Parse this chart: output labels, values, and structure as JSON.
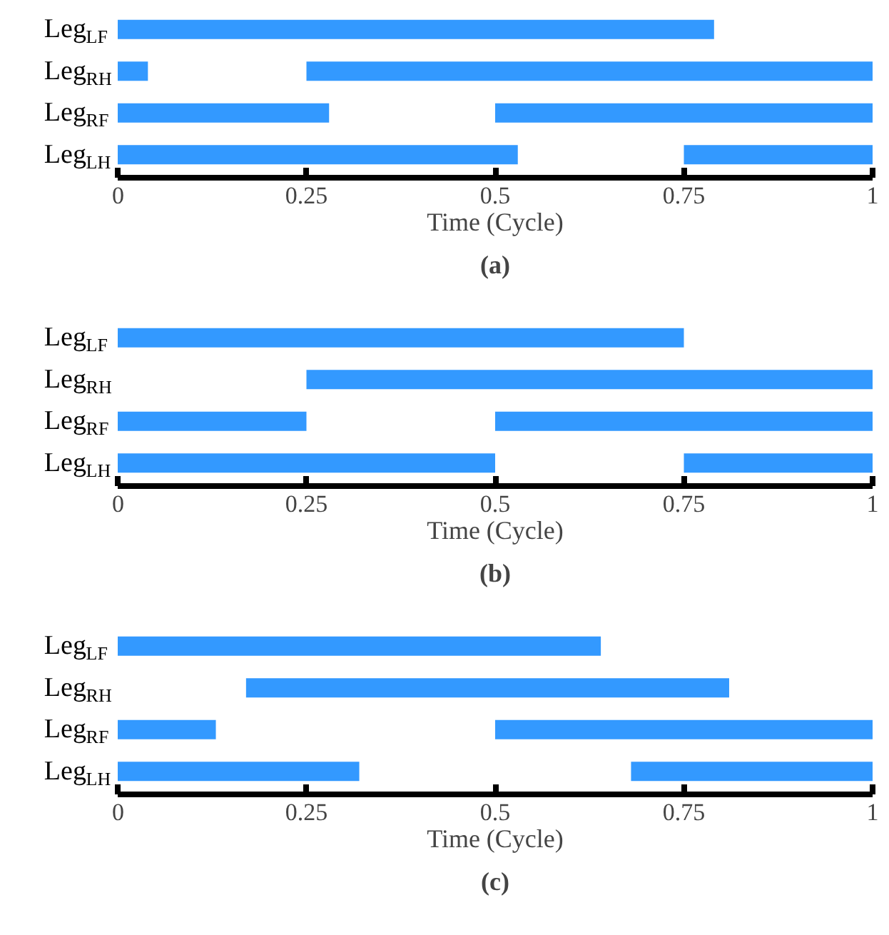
{
  "chart_data": [
    {
      "type": "bar",
      "orientation": "horizontal",
      "title": "(a)",
      "xlabel": "Time (Cycle)",
      "categories": [
        "Leg$_{LF}$",
        "Leg$_{RH}$",
        "Leg$_{RF}$",
        "Leg$_{LH}$"
      ],
      "series": [
        {
          "color": "#3399ff",
          "base": [
            0,
            0,
            0,
            0
          ],
          "values": [
            0.79,
            0.04,
            0.28,
            0.53
          ]
        },
        {
          "color": "#3399ff",
          "base": [
            null,
            0.25,
            0.5,
            0.75
          ],
          "values": [
            null,
            0.75,
            0.5,
            0.25
          ]
        }
      ],
      "xlim": [
        0,
        1
      ],
      "xticks": [
        0,
        0.25,
        0.5,
        0.75,
        1
      ],
      "grid": false
    },
    {
      "type": "bar",
      "orientation": "horizontal",
      "title": "(b)",
      "xlabel": "Time (Cycle)",
      "categories": [
        "Leg$_{LF}$",
        "Leg$_{RH}$",
        "Leg$_{RF}$",
        "Leg$_{LH}$"
      ],
      "series": [
        {
          "color": "#3399ff",
          "base": [
            0,
            null,
            0,
            0
          ],
          "values": [
            0.75,
            null,
            0.25,
            0.5
          ]
        },
        {
          "color": "#3399ff",
          "base": [
            null,
            0.25,
            0.5,
            0.75
          ],
          "values": [
            null,
            0.75,
            0.5,
            0.25
          ]
        }
      ],
      "xlim": [
        0,
        1
      ],
      "xticks": [
        0,
        0.25,
        0.5,
        0.75,
        1
      ],
      "grid": false
    },
    {
      "type": "bar",
      "orientation": "horizontal",
      "title": "(c)",
      "xlabel": "Time (Cycle)",
      "categories": [
        "Leg$_{LF}$",
        "Leg$_{RH}$",
        "Leg$_{RF}$",
        "Leg$_{LH}$"
      ],
      "series": [
        {
          "color": "#3399ff",
          "base": [
            0,
            0.17,
            0,
            0
          ],
          "values": [
            0.64,
            0.64,
            0.13,
            0.32
          ]
        },
        {
          "color": "#3399ff",
          "base": [
            null,
            null,
            0.5,
            0.68
          ],
          "values": [
            null,
            null,
            0.5,
            0.32
          ]
        }
      ],
      "xlim": [
        0,
        1
      ],
      "xticks": [
        0,
        0.25,
        0.5,
        0.75,
        1
      ],
      "grid": false
    }
  ]
}
